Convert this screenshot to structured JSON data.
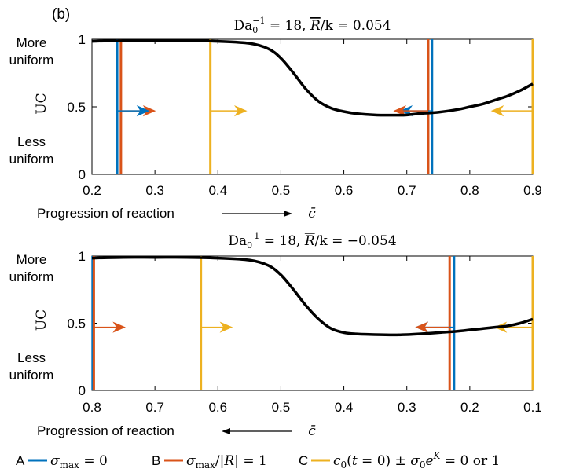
{
  "panel_label": "(b)",
  "legend": {
    "items": [
      {
        "key": "A",
        "label": "σmax = 0",
        "color": "#0072BD"
      },
      {
        "key": "B",
        "label": "σmax/|R| = 1",
        "color": "#D95319"
      },
      {
        "key": "C",
        "label": "c0(t = 0) ± σ0e^K = 0 or 1",
        "color": "#EDB120"
      }
    ]
  },
  "chart_data": [
    {
      "type": "line",
      "title": "Da0^-1 = 18, R̄/k = 0.054",
      "title_parts": {
        "base": "Da",
        "sub": "0",
        "sup": "−1",
        "rest": " = 18, ",
        "var": "R",
        "tail": "/k = 0.054"
      },
      "ylabel": "UC",
      "xlabel": "c̄",
      "progression_label": "Progression of reaction",
      "progression_arrow": "right",
      "y_annotations": {
        "top": [
          "More",
          "uniform"
        ],
        "bottom": [
          "Less",
          "uniform"
        ]
      },
      "xlim": [
        0.2,
        0.9
      ],
      "x_reversed": false,
      "ylim": [
        0,
        1
      ],
      "xticks": [
        0.2,
        0.3,
        0.4,
        0.5,
        0.6,
        0.7,
        0.8,
        0.9
      ],
      "xtick_labels": [
        "0.2",
        "0.3",
        "0.4",
        "0.5",
        "0.6",
        "0.7",
        "0.8",
        "0.9"
      ],
      "yticks": [
        0,
        0.5,
        1
      ],
      "ytick_labels": [
        "0",
        "0.5",
        "1"
      ],
      "series": [
        {
          "x": [
            0.2,
            0.25,
            0.3,
            0.35,
            0.4,
            0.45,
            0.48,
            0.5,
            0.52,
            0.54,
            0.56,
            0.58,
            0.6,
            0.62,
            0.65,
            0.68,
            0.7,
            0.72,
            0.75,
            0.78,
            0.8,
            0.82,
            0.84,
            0.86,
            0.88,
            0.9
          ],
          "y": [
            0.985,
            0.99,
            0.99,
            0.99,
            0.985,
            0.97,
            0.93,
            0.86,
            0.75,
            0.63,
            0.54,
            0.49,
            0.465,
            0.45,
            0.44,
            0.438,
            0.44,
            0.45,
            0.46,
            0.48,
            0.5,
            0.52,
            0.55,
            0.58,
            0.62,
            0.67
          ],
          "color": "#000000"
        }
      ],
      "vlines": [
        {
          "x": 0.24,
          "color": "#0072BD"
        },
        {
          "x": 0.246,
          "color": "#D95319"
        },
        {
          "x": 0.388,
          "color": "#EDB120"
        },
        {
          "x": 0.734,
          "color": "#D95319"
        },
        {
          "x": 0.74,
          "color": "#0072BD"
        },
        {
          "x": 0.9,
          "color": "#EDB120"
        }
      ],
      "arrows": [
        {
          "from": 0.246,
          "to": 0.3,
          "y": 0.47,
          "color": "#D95319"
        },
        {
          "from": 0.24,
          "to": 0.29,
          "y": 0.47,
          "color": "#0072BD"
        },
        {
          "from": 0.388,
          "to": 0.445,
          "y": 0.47,
          "color": "#EDB120"
        },
        {
          "from": 0.74,
          "to": 0.69,
          "y": 0.47,
          "color": "#0072BD"
        },
        {
          "from": 0.734,
          "to": 0.68,
          "y": 0.47,
          "color": "#D95319"
        },
        {
          "from": 0.9,
          "to": 0.835,
          "y": 0.47,
          "color": "#EDB120"
        }
      ]
    },
    {
      "type": "line",
      "title": "Da0^-1 = 18, R̄/k = −0.054",
      "title_parts": {
        "base": "Da",
        "sub": "0",
        "sup": "−1",
        "rest": " = 18, ",
        "var": "R",
        "tail": "/k = −0.054"
      },
      "ylabel": "UC",
      "xlabel": "c̄",
      "progression_label": "Progression of reaction",
      "progression_arrow": "left",
      "y_annotations": {
        "top": [
          "More",
          "uniform"
        ],
        "bottom": [
          "Less",
          "uniform"
        ]
      },
      "xlim": [
        0.1,
        0.8
      ],
      "x_reversed": true,
      "ylim": [
        0,
        1
      ],
      "xticks": [
        0.8,
        0.7,
        0.6,
        0.5,
        0.4,
        0.3,
        0.2,
        0.1
      ],
      "xtick_labels": [
        "0.8",
        "0.7",
        "0.6",
        "0.5",
        "0.4",
        "0.3",
        "0.2",
        "0.1"
      ],
      "yticks": [
        0,
        0.5,
        1
      ],
      "ytick_labels": [
        "0",
        "0.5",
        "1"
      ],
      "series": [
        {
          "x": [
            0.8,
            0.75,
            0.7,
            0.65,
            0.6,
            0.55,
            0.52,
            0.5,
            0.48,
            0.46,
            0.44,
            0.42,
            0.4,
            0.38,
            0.35,
            0.32,
            0.3,
            0.28,
            0.25,
            0.22,
            0.2,
            0.18,
            0.16,
            0.14,
            0.12,
            0.1
          ],
          "y": [
            0.985,
            0.99,
            0.99,
            0.99,
            0.985,
            0.97,
            0.93,
            0.86,
            0.75,
            0.63,
            0.53,
            0.46,
            0.43,
            0.42,
            0.415,
            0.413,
            0.415,
            0.42,
            0.43,
            0.44,
            0.45,
            0.46,
            0.47,
            0.48,
            0.5,
            0.53
          ],
          "color": "#000000"
        }
      ],
      "vlines": [
        {
          "x": 0.799,
          "color": "#0072BD"
        },
        {
          "x": 0.797,
          "color": "#D95319"
        },
        {
          "x": 0.627,
          "color": "#EDB120"
        },
        {
          "x": 0.225,
          "color": "#0072BD"
        },
        {
          "x": 0.232,
          "color": "#D95319"
        },
        {
          "x": 0.1,
          "color": "#EDB120"
        }
      ],
      "arrows": [
        {
          "from": 0.797,
          "to": 0.748,
          "y": 0.47,
          "color": "#D95319"
        },
        {
          "from": 0.627,
          "to": 0.578,
          "y": 0.47,
          "color": "#EDB120"
        },
        {
          "from": 0.225,
          "to": 0.285,
          "y": 0.47,
          "color": "#0072BD"
        },
        {
          "from": 0.232,
          "to": 0.285,
          "y": 0.47,
          "color": "#D95319"
        },
        {
          "from": 0.1,
          "to": 0.16,
          "y": 0.47,
          "color": "#EDB120"
        }
      ]
    }
  ]
}
